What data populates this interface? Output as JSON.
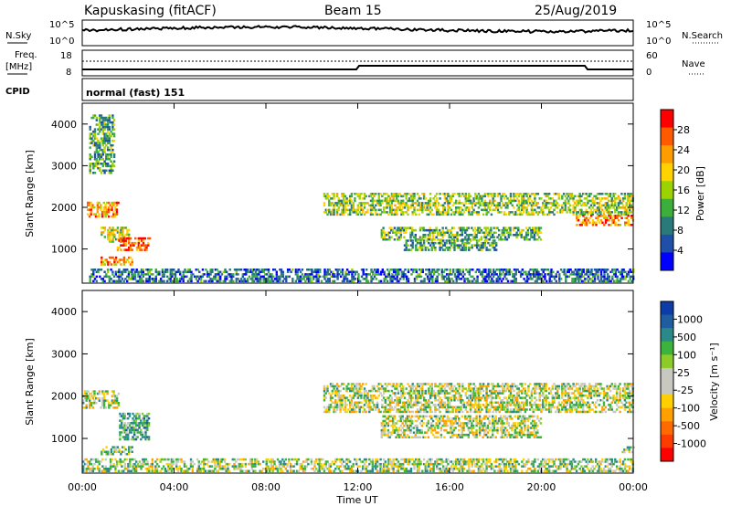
{
  "header": {
    "station": "Kapuskasing (fitACF)",
    "beam": "Beam 15",
    "date": "25/Aug/2019"
  },
  "noise_panel": {
    "left_label": "N.Sky",
    "right_label": "N.Search",
    "ticks_left": [
      "10^5",
      "10^0"
    ],
    "ticks_right": [
      "10^5",
      "10^0"
    ]
  },
  "freq_panel": {
    "left_label_1": "Freq.",
    "left_label_2": "[MHz]",
    "right_label": "Nave",
    "ticks_left": [
      "18",
      "8"
    ],
    "ticks_right": [
      "60",
      "0"
    ]
  },
  "cpid_panel": {
    "left_label": "CPID",
    "mode_text": "normal (fast) 151"
  },
  "power_panel": {
    "ylabel": "Slant Range [km]",
    "yticks": [
      "4000",
      "3000",
      "2000",
      "1000"
    ],
    "colorbar_label": "Power [dB]",
    "colorbar_ticks": [
      "28",
      "24",
      "20",
      "16",
      "12",
      "8",
      "4"
    ],
    "colorbar_colors": [
      "#ff0000",
      "#ff5a00",
      "#ff9c00",
      "#ffd200",
      "#9cd200",
      "#3cae3c",
      "#2a7a7a",
      "#1f4fa8",
      "#0000ff"
    ]
  },
  "velocity_panel": {
    "ylabel": "Slant Range [km]",
    "yticks": [
      "4000",
      "3000",
      "2000",
      "1000"
    ],
    "colorbar_label": "Velocity [m s⁻¹]",
    "colorbar_ticks": [
      "1000",
      "500",
      "100",
      "25",
      "-25",
      "-100",
      "-500",
      "-1000"
    ],
    "colorbar_colors": [
      "#0d3ca8",
      "#1f5ca0",
      "#2a8a8a",
      "#3cb43c",
      "#8ccc28",
      "#c8c8c0",
      "#c8c8c0",
      "#ffd000",
      "#ffa000",
      "#ff6a00",
      "#ff3c00",
      "#ff0000"
    ]
  },
  "xaxis": {
    "label": "Time UT",
    "ticks": [
      "00:00",
      "04:00",
      "08:00",
      "12:00",
      "16:00",
      "20:00",
      "00:00"
    ]
  },
  "chart_data": {
    "type": "heatmap",
    "title": "Kapuskasing (fitACF)",
    "xlabel": "Time UT",
    "ylabel": "Slant Range [km]",
    "xlim": [
      0,
      24
    ],
    "ylim": [
      180,
      4500
    ],
    "x_unit": "hours UT",
    "panels": [
      {
        "name": "Power [dB]",
        "value_range": [
          0,
          30
        ],
        "regions": [
          {
            "t0": 0.2,
            "t1": 1.6,
            "r0": 1750,
            "r1": 2100,
            "value": 22
          },
          {
            "t0": 0.8,
            "t1": 2.0,
            "r0": 1150,
            "r1": 1500,
            "value": 16
          },
          {
            "t0": 1.5,
            "t1": 2.9,
            "r0": 950,
            "r1": 1250,
            "value": 26
          },
          {
            "t0": 0.8,
            "t1": 2.2,
            "r0": 600,
            "r1": 800,
            "value": 22
          },
          {
            "t0": 0.3,
            "t1": 1.4,
            "r0": 2800,
            "r1": 4200,
            "value": 10
          },
          {
            "t0": 0.3,
            "t1": 24,
            "r0": 200,
            "r1": 500,
            "value": 6
          },
          {
            "t0": 10.5,
            "t1": 24,
            "r0": 1800,
            "r1": 2300,
            "value": 14
          },
          {
            "t0": 13.0,
            "t1": 20.0,
            "r0": 1200,
            "r1": 1500,
            "value": 12
          },
          {
            "t0": 14.0,
            "t1": 18.0,
            "r0": 950,
            "r1": 1200,
            "value": 10
          },
          {
            "t0": 21.5,
            "t1": 24,
            "r0": 1550,
            "r1": 1800,
            "value": 24
          }
        ]
      },
      {
        "name": "Velocity [m s-1]",
        "value_range": [
          -1000,
          1000
        ],
        "regions": [
          {
            "t0": 0.0,
            "t1": 1.6,
            "r0": 1700,
            "r1": 2100,
            "value": 0
          },
          {
            "t0": 1.6,
            "t1": 2.9,
            "r0": 950,
            "r1": 1600,
            "value": 200
          },
          {
            "t0": 0.8,
            "t1": 2.2,
            "r0": 600,
            "r1": 800,
            "value": 100
          },
          {
            "t0": 0.0,
            "t1": 24,
            "r0": 200,
            "r1": 500,
            "value": 50
          },
          {
            "t0": 10.5,
            "t1": 24,
            "r0": 1600,
            "r1": 2300,
            "value": 0
          },
          {
            "t0": 13.0,
            "t1": 20.0,
            "r0": 1000,
            "r1": 1500,
            "value": 0
          },
          {
            "t0": 23.5,
            "t1": 24,
            "r0": 650,
            "r1": 800,
            "value": 100
          }
        ]
      }
    ]
  }
}
